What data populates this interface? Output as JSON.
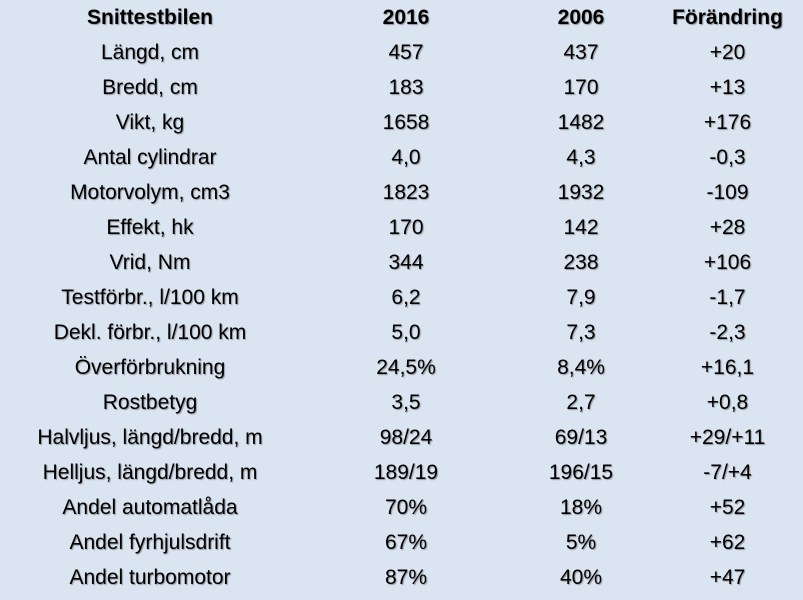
{
  "header": {
    "label": "Snittestbilen",
    "y2016": "2016",
    "y2006": "2006",
    "change": "Förändring"
  },
  "rows": [
    {
      "label": "Längd, cm",
      "y2016": "457",
      "y2006": "437",
      "change": "+20"
    },
    {
      "label": "Bredd, cm",
      "y2016": "183",
      "y2006": "170",
      "change": "+13"
    },
    {
      "label": "Vikt, kg",
      "y2016": "1658",
      "y2006": "1482",
      "change": "+176"
    },
    {
      "label": "Antal cylindrar",
      "y2016": "4,0",
      "y2006": "4,3",
      "change": "-0,3"
    },
    {
      "label": "Motorvolym, cm3",
      "y2016": "1823",
      "y2006": "1932",
      "change": "-109"
    },
    {
      "label": "Effekt, hk",
      "y2016": "170",
      "y2006": "142",
      "change": "+28"
    },
    {
      "label": "Vrid, Nm",
      "y2016": "344",
      "y2006": "238",
      "change": "+106"
    },
    {
      "label": "Testförbr., l/100 km",
      "y2016": "6,2",
      "y2006": "7,9",
      "change": "-1,7"
    },
    {
      "label": "Dekl. förbr., l/100 km",
      "y2016": "5,0",
      "y2006": "7,3",
      "change": "-2,3"
    },
    {
      "label": "Överförbrukning",
      "y2016": "24,5%",
      "y2006": "8,4%",
      "change": "+16,1"
    },
    {
      "label": "Rostbetyg",
      "y2016": "3,5",
      "y2006": "2,7",
      "change": "+0,8"
    },
    {
      "label": "Halvljus, längd/bredd, m",
      "y2016": "98/24",
      "y2006": "69/13",
      "change": "+29/+11"
    },
    {
      "label": "Helljus, längd/bredd, m",
      "y2016": "189/19",
      "y2006": "196/15",
      "change": "-7/+4"
    },
    {
      "label": "Andel automatlåda",
      "y2016": "70%",
      "y2006": "18%",
      "change": "+52"
    },
    {
      "label": "Andel fyrhjulsdrift",
      "y2016": "67%",
      "y2006": "5%",
      "change": "+62"
    },
    {
      "label": "Andel turbomotor",
      "y2016": "87%",
      "y2006": "40%",
      "change": "+47"
    }
  ],
  "colors": {
    "background": "#dbe5f1",
    "text": "#000000"
  }
}
